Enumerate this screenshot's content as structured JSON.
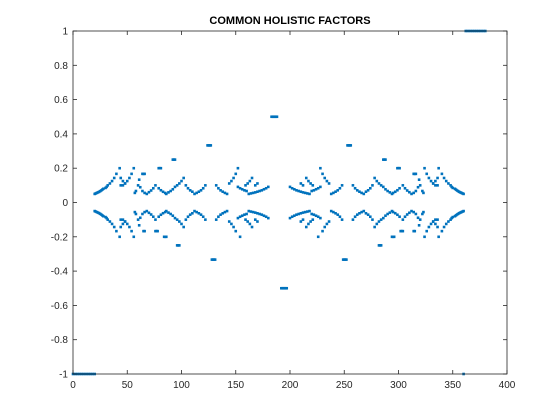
{
  "chart_data": {
    "type": "scatter",
    "title": "COMMON HOLISTIC FACTORS",
    "xlabel": "",
    "ylabel": "",
    "xlim": [
      0,
      400
    ],
    "ylim": [
      -1,
      1
    ],
    "xticks": [
      0,
      50,
      100,
      150,
      200,
      250,
      300,
      350,
      400
    ],
    "yticks": [
      -1,
      -0.8,
      -0.6,
      -0.4,
      -0.2,
      0,
      0.2,
      0.4,
      0.6,
      0.8,
      1
    ],
    "xtick_labels": [
      "0",
      "50",
      "100",
      "150",
      "200",
      "250",
      "300",
      "350",
      "400"
    ],
    "ytick_labels": [
      "-1",
      "-0.8",
      "-0.6",
      "-0.4",
      "-0.2",
      "0",
      "0.2",
      "0.4",
      "0.6",
      "0.8",
      "1"
    ],
    "grid": false,
    "marker_color": "#0072BD",
    "series": [
      {
        "points": [
          [
            0,
            -1
          ],
          [
            2,
            -1
          ],
          [
            4,
            -1
          ],
          [
            6,
            -1
          ],
          [
            8,
            -1
          ],
          [
            10,
            -1
          ],
          [
            12,
            -1
          ],
          [
            14,
            -1
          ],
          [
            16,
            -1
          ],
          [
            18,
            -1
          ],
          [
            20,
            -1
          ],
          [
            20,
            0.05
          ],
          [
            21,
            0.053
          ],
          [
            22,
            0.056
          ],
          [
            23,
            0.059
          ],
          [
            24,
            0.062
          ],
          [
            25,
            0.066
          ],
          [
            26,
            0.07
          ],
          [
            27,
            0.075
          ],
          [
            28,
            0.08
          ],
          [
            30,
            0.085
          ],
          [
            31,
            0.091
          ],
          [
            32,
            0.1
          ],
          [
            34,
            0.111
          ],
          [
            36,
            0.125
          ],
          [
            38,
            0.143
          ],
          [
            40,
            0.167
          ],
          [
            43,
            0.2
          ],
          [
            20,
            -0.05
          ],
          [
            21,
            -0.053
          ],
          [
            22,
            -0.056
          ],
          [
            23,
            -0.059
          ],
          [
            24,
            -0.062
          ],
          [
            25,
            -0.066
          ],
          [
            26,
            -0.07
          ],
          [
            27,
            -0.075
          ],
          [
            28,
            -0.08
          ],
          [
            30,
            -0.085
          ],
          [
            31,
            -0.091
          ],
          [
            32,
            -0.1
          ],
          [
            34,
            -0.111
          ],
          [
            36,
            -0.125
          ],
          [
            38,
            -0.143
          ],
          [
            40,
            -0.167
          ],
          [
            43,
            -0.2
          ],
          [
            44,
            0.1
          ],
          [
            46,
            0.1
          ],
          [
            48,
            0.111
          ],
          [
            50,
            0.125
          ],
          [
            52,
            0.143
          ],
          [
            54,
            0.167
          ],
          [
            56,
            0.2
          ],
          [
            44,
            -0.1
          ],
          [
            46,
            -0.1
          ],
          [
            48,
            -0.111
          ],
          [
            50,
            -0.125
          ],
          [
            52,
            -0.143
          ],
          [
            54,
            -0.167
          ],
          [
            56,
            -0.2
          ],
          [
            44,
            0.143
          ],
          [
            46,
            0.125
          ],
          [
            48,
            0.111
          ],
          [
            44,
            -0.143
          ],
          [
            46,
            -0.125
          ],
          [
            48,
            -0.111
          ],
          [
            57,
            0.056
          ],
          [
            58,
            0.067
          ],
          [
            60,
            0.1
          ],
          [
            61,
            0.133
          ],
          [
            57,
            -0.056
          ],
          [
            58,
            -0.067
          ],
          [
            60,
            -0.1
          ],
          [
            61,
            -0.133
          ],
          [
            62,
            0.089
          ],
          [
            64,
            0.067
          ],
          [
            66,
            0.056
          ],
          [
            68,
            0.05
          ],
          [
            62,
            -0.089
          ],
          [
            64,
            -0.067
          ],
          [
            66,
            -0.056
          ],
          [
            68,
            -0.05
          ],
          [
            70,
            0.06
          ],
          [
            72,
            0.07
          ],
          [
            74,
            0.083
          ],
          [
            76,
            0.1
          ],
          [
            70,
            -0.06
          ],
          [
            72,
            -0.07
          ],
          [
            74,
            -0.083
          ],
          [
            76,
            -0.1
          ],
          [
            79,
            0.083
          ],
          [
            81,
            0.0714
          ],
          [
            83,
            0.0625
          ],
          [
            85,
            0.0556
          ],
          [
            79,
            -0.083
          ],
          [
            81,
            -0.0714
          ],
          [
            83,
            -0.0625
          ],
          [
            85,
            -0.0556
          ],
          [
            92,
            0.25
          ],
          [
            93,
            0.25
          ],
          [
            94,
            0.25
          ],
          [
            96,
            -0.25
          ],
          [
            97,
            -0.25
          ],
          [
            98,
            -0.25
          ],
          [
            64,
            0.167
          ],
          [
            65,
            0.167
          ],
          [
            66,
            0.167
          ],
          [
            76,
            -0.167
          ],
          [
            77,
            -0.167
          ],
          [
            78,
            -0.167
          ],
          [
            79,
            0.2
          ],
          [
            80,
            0.2
          ],
          [
            81,
            0.2
          ],
          [
            65,
            -0.167
          ],
          [
            66,
            -0.167
          ],
          [
            84,
            -0.2
          ],
          [
            85,
            -0.2
          ],
          [
            86,
            -0.2
          ],
          [
            86,
            0.05
          ],
          [
            88,
            0.059
          ],
          [
            90,
            0.067
          ],
          [
            92,
            0.077
          ],
          [
            94,
            0.091
          ],
          [
            86,
            -0.05
          ],
          [
            88,
            -0.059
          ],
          [
            90,
            -0.067
          ],
          [
            92,
            -0.077
          ],
          [
            94,
            -0.091
          ],
          [
            96,
            0.1
          ],
          [
            98,
            0.111
          ],
          [
            100,
            0.125
          ],
          [
            102,
            0.143
          ],
          [
            96,
            -0.1
          ],
          [
            98,
            -0.111
          ],
          [
            100,
            -0.125
          ],
          [
            102,
            -0.143
          ],
          [
            104,
            0.1
          ],
          [
            106,
            0.083
          ],
          [
            108,
            0.071
          ],
          [
            110,
            0.063
          ],
          [
            104,
            -0.1
          ],
          [
            106,
            -0.083
          ],
          [
            108,
            -0.071
          ],
          [
            110,
            -0.063
          ],
          [
            112,
            0.05
          ],
          [
            114,
            0.056
          ],
          [
            116,
            0.063
          ],
          [
            118,
            0.071
          ],
          [
            120,
            0.083
          ],
          [
            122,
            0.1
          ],
          [
            112,
            -0.05
          ],
          [
            114,
            -0.056
          ],
          [
            116,
            -0.063
          ],
          [
            118,
            -0.071
          ],
          [
            120,
            -0.083
          ],
          [
            122,
            -0.1
          ],
          [
            124,
            0.333
          ],
          [
            125,
            0.333
          ],
          [
            126,
            0.333
          ],
          [
            127,
            0.333
          ],
          [
            128,
            -0.333
          ],
          [
            129,
            -0.333
          ],
          [
            130,
            -0.333
          ],
          [
            131,
            -0.333
          ],
          [
            132,
            0.1
          ],
          [
            134,
            0.083
          ],
          [
            136,
            0.071
          ],
          [
            138,
            0.063
          ],
          [
            140,
            0.056
          ],
          [
            142,
            0.05
          ],
          [
            132,
            -0.1
          ],
          [
            134,
            -0.083
          ],
          [
            136,
            -0.071
          ],
          [
            138,
            -0.063
          ],
          [
            140,
            -0.056
          ],
          [
            142,
            -0.05
          ],
          [
            144,
            0.111
          ],
          [
            146,
            0.125
          ],
          [
            148,
            0.143
          ],
          [
            150,
            0.167
          ],
          [
            152,
            0.2
          ],
          [
            144,
            -0.111
          ],
          [
            146,
            -0.125
          ],
          [
            148,
            -0.143
          ],
          [
            150,
            -0.167
          ],
          [
            154,
            -0.2
          ],
          [
            152,
            0.091
          ],
          [
            154,
            0.083
          ],
          [
            156,
            0.077
          ],
          [
            158,
            0.071
          ],
          [
            160,
            0.067
          ],
          [
            152,
            -0.091
          ],
          [
            154,
            -0.083
          ],
          [
            156,
            -0.077
          ],
          [
            158,
            -0.071
          ],
          [
            160,
            -0.067
          ],
          [
            162,
            0.05
          ],
          [
            164,
            0.053
          ],
          [
            166,
            0.056
          ],
          [
            168,
            0.059
          ],
          [
            170,
            0.063
          ],
          [
            172,
            0.067
          ],
          [
            174,
            0.071
          ],
          [
            176,
            0.077
          ],
          [
            178,
            0.083
          ],
          [
            180,
            0.091
          ],
          [
            162,
            -0.05
          ],
          [
            164,
            -0.053
          ],
          [
            166,
            -0.056
          ],
          [
            168,
            -0.059
          ],
          [
            170,
            -0.063
          ],
          [
            172,
            -0.067
          ],
          [
            174,
            -0.071
          ],
          [
            176,
            -0.077
          ],
          [
            178,
            -0.083
          ],
          [
            180,
            -0.091
          ],
          [
            159,
            0.1
          ],
          [
            161,
            0.111
          ],
          [
            163,
            0.125
          ],
          [
            165,
            0.143
          ],
          [
            159,
            -0.1
          ],
          [
            161,
            -0.111
          ],
          [
            163,
            -0.125
          ],
          [
            165,
            -0.143
          ],
          [
            168,
            0.1
          ],
          [
            170,
            0.111
          ],
          [
            168,
            -0.1
          ],
          [
            170,
            -0.111
          ],
          [
            183,
            0.5
          ],
          [
            184,
            0.5
          ],
          [
            185,
            0.5
          ],
          [
            186,
            0.5
          ],
          [
            187,
            0.5
          ],
          [
            188,
            0.5
          ],
          [
            192,
            -0.5
          ],
          [
            193,
            -0.5
          ],
          [
            194,
            -0.5
          ],
          [
            195,
            -0.5
          ],
          [
            196,
            -0.5
          ],
          [
            197,
            -0.5
          ]
        ]
      }
    ]
  }
}
